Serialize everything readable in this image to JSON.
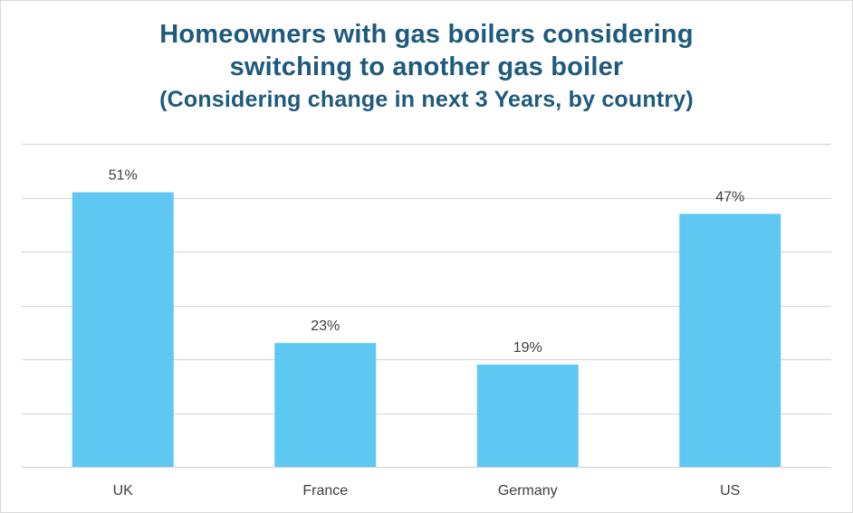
{
  "chart_data": {
    "type": "bar",
    "title": "Homeowners with gas boilers considering switching to another gas boiler",
    "title_lines": [
      "Homeowners with gas boilers considering",
      "switching to another gas boiler"
    ],
    "subtitle": "(Considering change in next 3 Years, by country)",
    "categories": [
      "UK",
      "France",
      "Germany",
      "US"
    ],
    "values": [
      51,
      23,
      19,
      47
    ],
    "data_labels": [
      "51%",
      "23%",
      "19%",
      "47%"
    ],
    "ylim": [
      0,
      60
    ],
    "y_gridline_step": 10,
    "grid": true,
    "legend": "none",
    "xlabel": "",
    "ylabel": "",
    "bar_color": "#5ec8f2",
    "grid_color": "#d9d9d9",
    "title_color": "#1e5a7d"
  }
}
